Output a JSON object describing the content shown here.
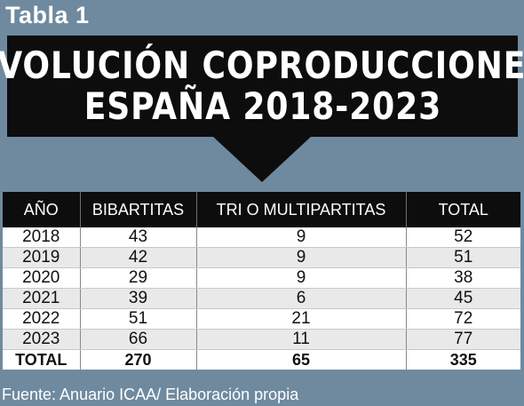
{
  "tag": "Tabla 1",
  "title_line1": "EVOLUCIÓN COPRODUCCIONES",
  "title_line2": "ESPAÑA 2018-2023",
  "source": "Fuente: Anuario ICAA/ Elaboración propia",
  "colors": {
    "background": "#6f8a9f",
    "banner": "#0d0d0d",
    "row_alt": "#e9e9e9"
  },
  "chart_data": {
    "type": "table",
    "columns": [
      "AÑO",
      "BIBARTITAS",
      "TRI O MULTIPARTITAS",
      "TOTAL"
    ],
    "rows": [
      [
        "2018",
        "43",
        "9",
        "52"
      ],
      [
        "2019",
        "42",
        "9",
        "51"
      ],
      [
        "2020",
        "29",
        "9",
        "38"
      ],
      [
        "2021",
        "39",
        "6",
        "45"
      ],
      [
        "2022",
        "51",
        "21",
        "72"
      ],
      [
        "2023",
        "66",
        "11",
        "77"
      ]
    ],
    "total_row": [
      "TOTAL",
      "270",
      "65",
      "335"
    ]
  }
}
